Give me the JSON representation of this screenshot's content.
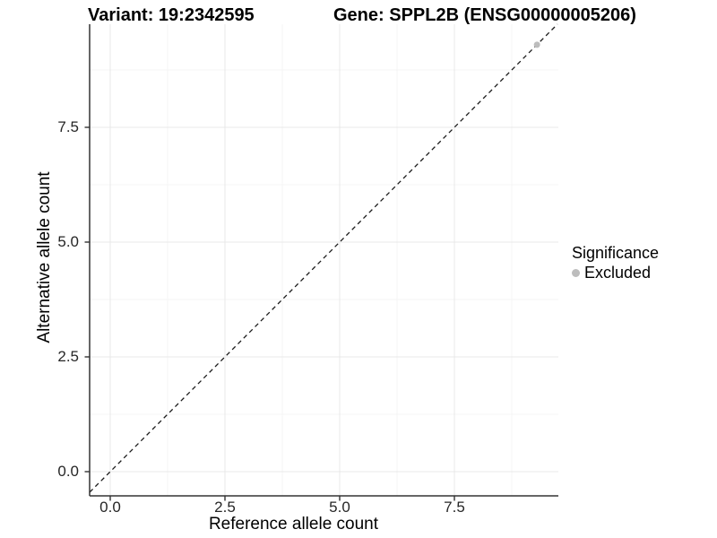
{
  "titles": {
    "variant": "Variant: 19:2342595",
    "gene": "Gene: SPPL2B (ENSG00000005206)"
  },
  "chart_data": {
    "type": "scatter",
    "title": "Variant: 19:2342595   Gene: SPPL2B (ENSG00000005206)",
    "xlabel": "Reference allele count",
    "ylabel": "Alternative allele count",
    "x_ticks": {
      "values": [
        0.0,
        2.5,
        5.0,
        7.5
      ],
      "labels": [
        "0.0",
        "2.5",
        "5.0",
        "7.5"
      ]
    },
    "y_ticks": {
      "values": [
        0.0,
        2.5,
        5.0,
        7.5
      ],
      "labels": [
        "0.0",
        "2.5",
        "5.0",
        "7.5"
      ]
    },
    "x_minor_breaks": [
      1.25,
      3.75,
      6.25,
      8.75
    ],
    "y_minor_breaks": [
      1.25,
      3.75,
      6.25,
      8.75
    ],
    "xlim": [
      -0.45,
      9.77
    ],
    "ylim": [
      -0.53,
      9.75
    ],
    "grid": true,
    "reference_line": {
      "type": "identity",
      "slope": 1,
      "intercept": 0,
      "style": "dashed",
      "color": "#1a1a1a"
    },
    "series": [
      {
        "name": "Excluded",
        "color": "#bdbdbd",
        "points": [
          [
            9.3,
            9.3
          ]
        ]
      }
    ],
    "legend": {
      "position": "right",
      "title": "Significance",
      "entries": [
        {
          "label": "Excluded",
          "color": "#bdbdbd"
        }
      ]
    }
  },
  "colors": {
    "axis_line": "#333333",
    "tick_mark": "#333333",
    "grid_major": "#e9e9e9",
    "grid_minor": "#f4f4f4",
    "panel_background": "#ffffff"
  }
}
